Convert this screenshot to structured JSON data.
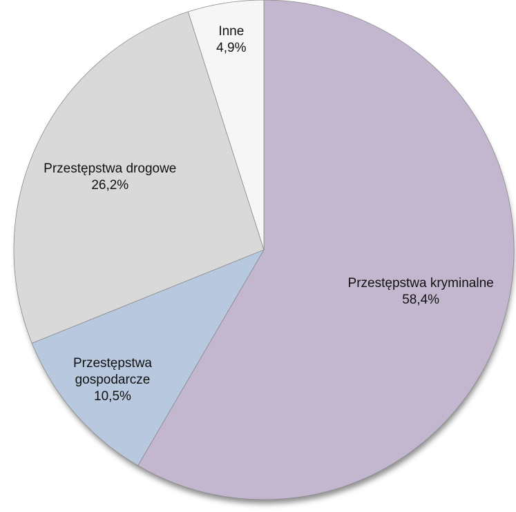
{
  "chart_data": {
    "type": "pie",
    "categories": [
      "Przestępstwa kryminalne",
      "Przestępstwa gospodarcze",
      "Przestępstwa drogowe",
      "Inne"
    ],
    "values": [
      58.4,
      10.5,
      26.2,
      4.9
    ],
    "value_labels": [
      "58,4%",
      "10,5%",
      "26,2%",
      "4,9%"
    ],
    "colors": [
      "#c3b7cf",
      "#b8c9df",
      "#d9d9d9",
      "#f6f6f6"
    ]
  }
}
